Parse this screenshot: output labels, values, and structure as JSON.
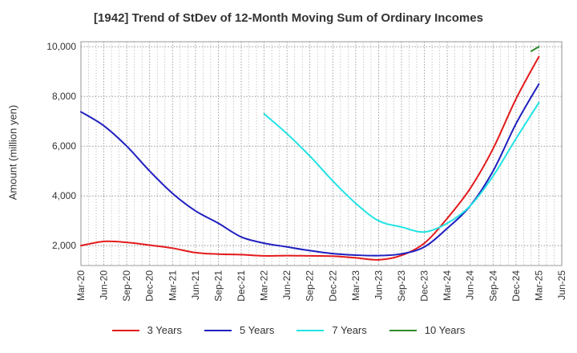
{
  "chart_data": {
    "type": "line",
    "title": "[1942]  Trend of StDev of 12-Month Moving Sum of Ordinary Incomes",
    "xlabel": "",
    "ylabel": "Amount (million yen)",
    "ylim": [
      1200,
      10200
    ],
    "yticks": [
      2000,
      4000,
      6000,
      8000,
      10000
    ],
    "ytick_labels": [
      "2,000",
      "4,000",
      "6,000",
      "8,000",
      "10,000"
    ],
    "grid": true,
    "legend_position": "bottom",
    "x_ticks": [
      "Mar-20",
      "Jun-20",
      "Sep-20",
      "Dec-20",
      "Mar-21",
      "Jun-21",
      "Sep-21",
      "Dec-21",
      "Mar-22",
      "Jun-22",
      "Sep-22",
      "Dec-22",
      "Mar-23",
      "Jun-23",
      "Sep-23",
      "Dec-23",
      "Mar-24",
      "Jun-24",
      "Sep-24",
      "Dec-24",
      "Mar-25",
      "Jun-25"
    ],
    "series": [
      {
        "name": "3 Years",
        "color": "#e31a1c",
        "x": [
          "Mar-20",
          "Jun-20",
          "Sep-20",
          "Dec-20",
          "Mar-21",
          "Jun-21",
          "Sep-21",
          "Dec-21",
          "Mar-22",
          "Jun-22",
          "Sep-22",
          "Dec-22",
          "Mar-23",
          "Jun-23",
          "Sep-23",
          "Dec-23",
          "Mar-24",
          "Jun-24",
          "Sep-24",
          "Dec-24",
          "Mar-25"
        ],
        "values": [
          2000,
          2170,
          2130,
          2020,
          1900,
          1720,
          1660,
          1640,
          1590,
          1600,
          1590,
          1580,
          1510,
          1430,
          1610,
          2100,
          3100,
          4300,
          5900,
          7900,
          9600
        ]
      },
      {
        "name": "5 Years",
        "color": "#1f1fbf",
        "x": [
          "Mar-20",
          "Jun-20",
          "Sep-20",
          "Dec-20",
          "Mar-21",
          "Jun-21",
          "Sep-21",
          "Dec-21",
          "Mar-22",
          "Jun-22",
          "Sep-22",
          "Dec-22",
          "Mar-23",
          "Jun-23",
          "Sep-23",
          "Dec-23",
          "Mar-24",
          "Jun-24",
          "Sep-24",
          "Dec-24",
          "Mar-25"
        ],
        "values": [
          7380,
          6820,
          6000,
          5000,
          4100,
          3400,
          2900,
          2350,
          2100,
          1950,
          1800,
          1680,
          1620,
          1600,
          1670,
          1950,
          2700,
          3600,
          5000,
          6900,
          8500
        ]
      },
      {
        "name": "7 Years",
        "color": "#22e3e3",
        "x": [
          "Mar-22",
          "Jun-22",
          "Sep-22",
          "Dec-22",
          "Mar-23",
          "Jun-23",
          "Sep-23",
          "Dec-23",
          "Mar-24",
          "Jun-24",
          "Sep-24",
          "Dec-24",
          "Mar-25"
        ],
        "values": [
          7300,
          6500,
          5600,
          4600,
          3700,
          3000,
          2750,
          2550,
          2900,
          3600,
          4800,
          6300,
          7750
        ]
      },
      {
        "name": "10 Years",
        "color": "#2e8b2e",
        "x": [
          "Feb-25",
          "Mar-25"
        ],
        "values": [
          9820,
          10000
        ]
      }
    ]
  }
}
